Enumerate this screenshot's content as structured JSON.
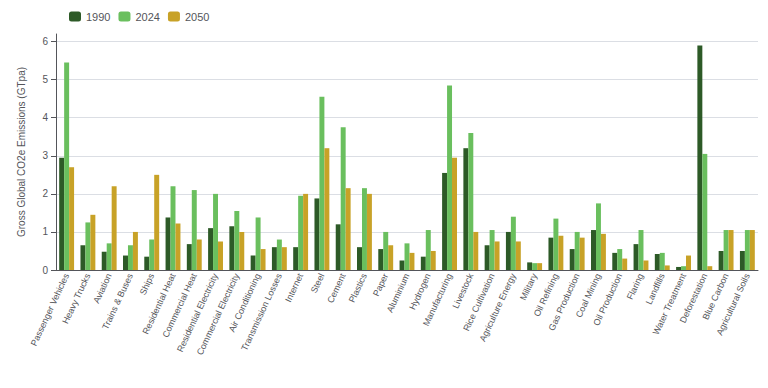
{
  "chart_data": {
    "type": "bar",
    "categories": [
      "Passenger Vehicles",
      "Heavy Trucks",
      "Aviation",
      "Trains & Buses",
      "Ships",
      "Residential Heat",
      "Commercial Heat",
      "Residential Electricity",
      "Commercial Electricity",
      "Air Conditioning",
      "Transmission Losses",
      "Internet",
      "Steel",
      "Cement",
      "Plastics",
      "Paper",
      "Aluminium",
      "Hydrogen",
      "Manufacturing",
      "Livestock",
      "Rice Cultivation",
      "Agriculture Energy",
      "Military",
      "Oil Refining",
      "Gas Production",
      "Coal Mining",
      "Oil Production",
      "Flaring",
      "Landfills",
      "Water Treatment",
      "Deforestation",
      "Blue Carbon",
      "Agricultural Soils"
    ],
    "series": [
      {
        "name": "1990",
        "color": "#2d5a27",
        "values": [
          2.95,
          0.65,
          0.48,
          0.38,
          0.35,
          1.38,
          0.68,
          1.1,
          1.15,
          0.38,
          0.6,
          0.6,
          1.88,
          1.2,
          0.6,
          0.55,
          0.25,
          0.35,
          2.55,
          3.2,
          0.65,
          1.0,
          0.2,
          0.85,
          0.55,
          1.05,
          0.45,
          0.68,
          0.42,
          0.08,
          5.9,
          0.5,
          0.5
        ]
      },
      {
        "name": "2024",
        "color": "#6abf5e",
        "values": [
          5.45,
          1.25,
          0.7,
          0.65,
          0.8,
          2.2,
          2.1,
          2.0,
          1.55,
          1.38,
          0.8,
          1.95,
          4.55,
          3.75,
          2.15,
          1.0,
          0.7,
          1.05,
          4.85,
          3.6,
          1.05,
          1.4,
          0.18,
          1.35,
          1.0,
          1.75,
          0.55,
          1.05,
          0.45,
          0.1,
          3.05,
          1.05,
          1.05
        ]
      },
      {
        "name": "2050",
        "color": "#c8a227",
        "values": [
          2.7,
          1.45,
          2.2,
          1.0,
          2.5,
          1.22,
          0.8,
          0.75,
          1.0,
          0.55,
          0.6,
          2.0,
          3.2,
          2.15,
          2.0,
          0.65,
          0.45,
          0.5,
          2.95,
          1.0,
          0.75,
          0.75,
          0.18,
          0.9,
          0.85,
          0.95,
          0.3,
          0.25,
          0.12,
          0.38,
          0.1,
          1.05,
          1.05
        ]
      }
    ],
    "ylabel": "Gross Global CO2e Emissions (GTpa)",
    "ylim": [
      0,
      6.2
    ],
    "yticks": [
      0,
      1,
      2,
      3,
      4,
      5,
      6
    ],
    "grid": true,
    "legend": "upper left"
  }
}
